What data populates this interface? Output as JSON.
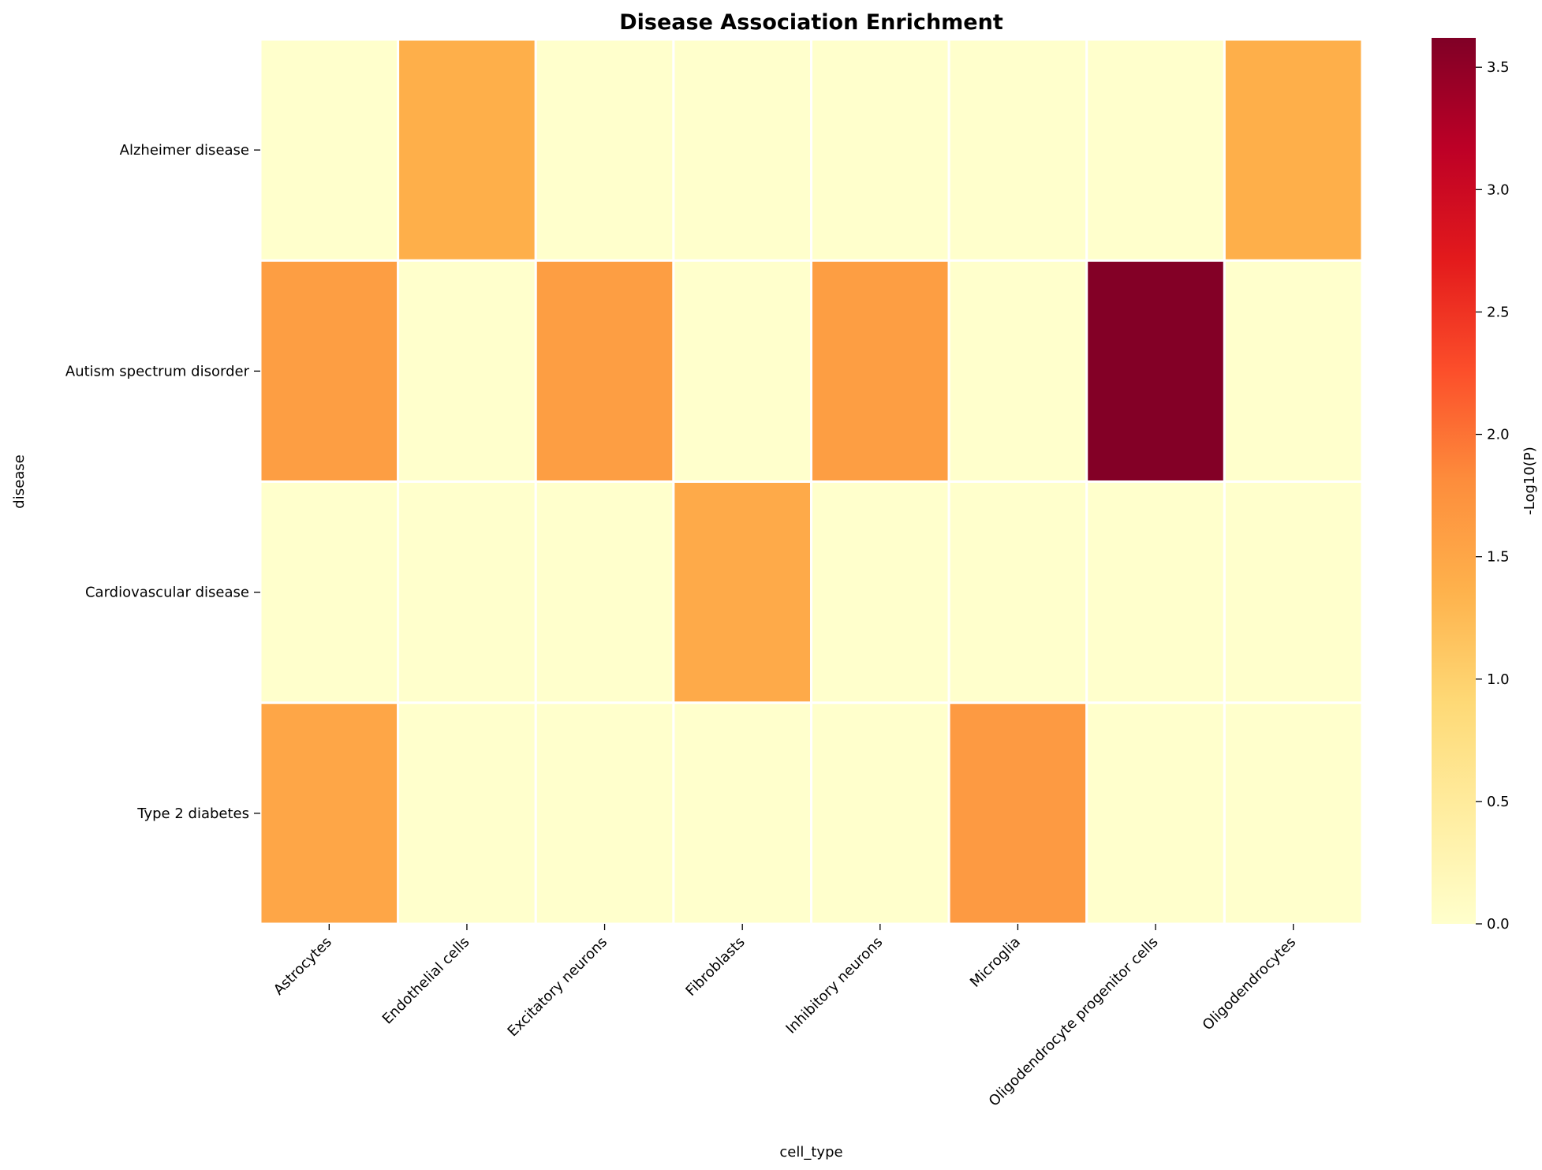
{
  "chart_data": {
    "type": "heatmap",
    "title": "Disease Association Enrichment",
    "xlabel": "cell_type",
    "ylabel": "disease",
    "x_categories": [
      "Astrocytes",
      "Endothelial cells",
      "Excitatory neurons",
      "Fibroblasts",
      "Inhibitory neurons",
      "Microglia",
      "Oligodendrocyte progenitor cells",
      "Oligodendrocytes"
    ],
    "y_categories": [
      "Alzheimer disease",
      "Autism spectrum disorder",
      "Cardiovascular disease",
      "Type 2 diabetes"
    ],
    "values": [
      [
        0.0,
        1.4,
        0.0,
        0.0,
        0.0,
        0.0,
        0.0,
        1.4
      ],
      [
        1.6,
        0.0,
        1.6,
        0.0,
        1.6,
        0.0,
        3.6,
        0.0
      ],
      [
        0.0,
        0.0,
        0.0,
        1.45,
        0.0,
        0.0,
        0.0,
        0.0
      ],
      [
        1.5,
        0.0,
        0.0,
        0.0,
        0.0,
        1.65,
        0.0,
        0.0
      ]
    ],
    "colorbar": {
      "label": "-Log10(P)",
      "range": [
        0,
        3.62
      ],
      "ticks": [
        "0.0",
        "0.5",
        "1.0",
        "1.5",
        "2.0",
        "2.5",
        "3.0",
        "3.5"
      ],
      "colormap": "YlOrRd"
    }
  }
}
